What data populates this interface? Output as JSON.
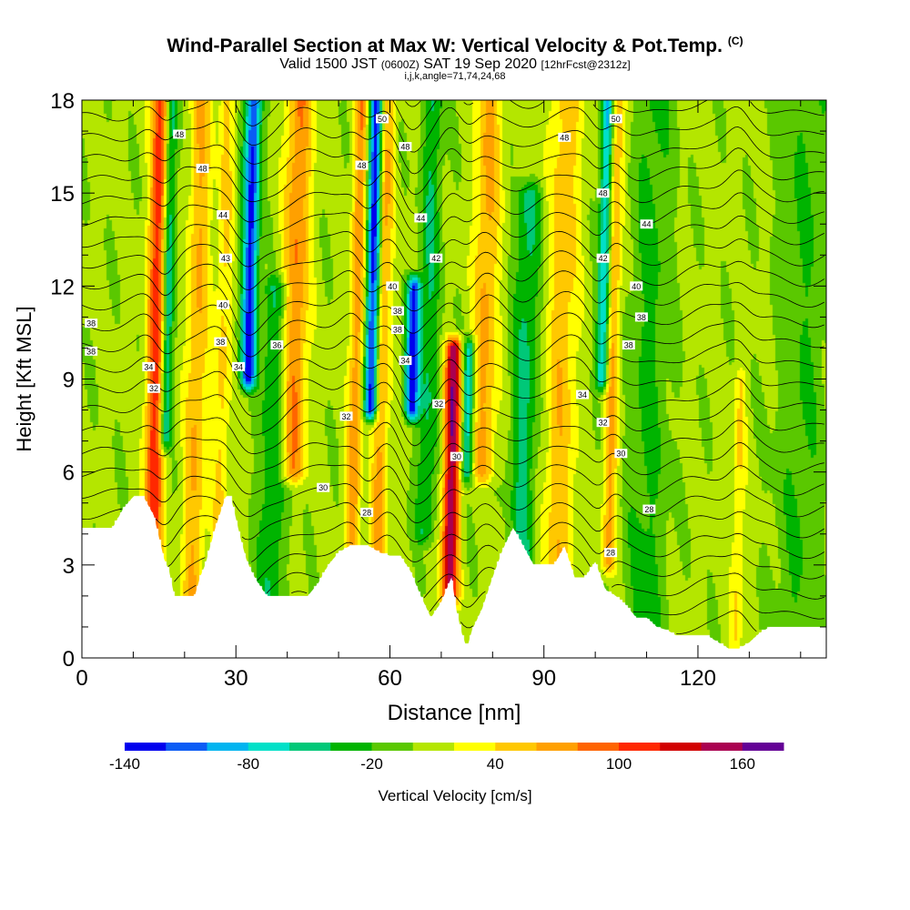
{
  "header": {
    "title": "Wind-Parallel Section at Max W: Vertical Velocity & Pot.Temp.",
    "title_tag": "(C)",
    "valid_a": "Valid 1500 JST",
    "valid_b": "(0600Z)",
    "valid_c": "SAT 19 Sep 2020",
    "valid_d": "[12hrFcst@2312z]",
    "indices": "i,j,k,angle=71,74,24,68"
  },
  "chart_data": {
    "type": "heatmap",
    "xlabel": "Distance [nm]",
    "ylabel": "Height [Kft MSL]",
    "xlim": [
      0,
      145
    ],
    "ylim": [
      0,
      18
    ],
    "xticks": [
      0,
      30,
      60,
      90,
      120
    ],
    "yticks": [
      0,
      3,
      6,
      9,
      12,
      15,
      18
    ],
    "colorbar": {
      "label": "Vertical Velocity [cm/s]",
      "range": [
        -140,
        180
      ],
      "step": 20,
      "ticks": [
        -140,
        -80,
        -20,
        40,
        100,
        160
      ],
      "colors": [
        "#0000ee",
        "#0a5cf5",
        "#00b4f0",
        "#00e0c8",
        "#00c878",
        "#00b400",
        "#5ac800",
        "#b4e600",
        "#ffff00",
        "#ffc800",
        "#ffa000",
        "#ff6400",
        "#ff2800",
        "#d20000",
        "#aa0050",
        "#640096"
      ]
    },
    "fields": {
      "background_w": 5,
      "updrafts": [
        {
          "x": 14,
          "y0": 0.5,
          "y1": 18,
          "amp": 110,
          "w": 1.8
        },
        {
          "x": 22,
          "y0": 0.5,
          "y1": 18,
          "amp": 55,
          "w": 2.2
        },
        {
          "x": 27,
          "y0": 3,
          "y1": 18,
          "amp": 40,
          "w": 1.5
        },
        {
          "x": 41,
          "y0": 6,
          "y1": 18,
          "amp": 75,
          "w": 2.5
        },
        {
          "x": 53,
          "y0": 3,
          "y1": 18,
          "amp": 70,
          "w": 1.4
        },
        {
          "x": 58,
          "y0": 3,
          "y1": 18,
          "amp": 60,
          "w": 1.6
        },
        {
          "x": 72,
          "y0": 2,
          "y1": 10,
          "amp": 150,
          "w": 1.6
        },
        {
          "x": 78,
          "y0": 6,
          "y1": 18,
          "amp": 60,
          "w": 2.5
        },
        {
          "x": 93,
          "y0": 3,
          "y1": 18,
          "amp": 50,
          "w": 3
        },
        {
          "x": 103,
          "y0": 3,
          "y1": 18,
          "amp": 60,
          "w": 1.4
        },
        {
          "x": 128,
          "y0": 0,
          "y1": 9,
          "amp": 35,
          "w": 1.2
        }
      ],
      "downdrafts": [
        {
          "x": 16,
          "y0": 7,
          "y1": 18,
          "amp": -75,
          "w": 1.2
        },
        {
          "x": 32,
          "y0": 9,
          "y1": 18,
          "amp": -130,
          "w": 1.5
        },
        {
          "x": 37,
          "y0": 2,
          "y1": 12,
          "amp": -45,
          "w": 2.5
        },
        {
          "x": 56,
          "y0": 8,
          "y1": 18,
          "amp": -140,
          "w": 1.3
        },
        {
          "x": 64,
          "y0": 8,
          "y1": 12,
          "amp": -130,
          "w": 1.3
        },
        {
          "x": 67,
          "y0": 4,
          "y1": 18,
          "amp": -45,
          "w": 2
        },
        {
          "x": 75,
          "y0": 6,
          "y1": 10,
          "amp": -85,
          "w": 1.2
        },
        {
          "x": 86,
          "y0": 3,
          "y1": 15,
          "amp": -50,
          "w": 2.5
        },
        {
          "x": 101,
          "y0": 9,
          "y1": 18,
          "amp": -90,
          "w": 1.2
        },
        {
          "x": 110,
          "y0": 0,
          "y1": 18,
          "amp": -30,
          "w": 4
        },
        {
          "x": 140,
          "y0": 0,
          "y1": 18,
          "amp": -25,
          "w": 5
        }
      ],
      "theta_base_levels": [
        28,
        30,
        32,
        34,
        36,
        38,
        40,
        42,
        44,
        46,
        48,
        50
      ]
    },
    "terrain": {
      "x": [
        0,
        6,
        8,
        10,
        12,
        14,
        16,
        17,
        18,
        20,
        22,
        23,
        24,
        26,
        28,
        29,
        30,
        31,
        32,
        33,
        34,
        36,
        38,
        40,
        42,
        44,
        46,
        48,
        50,
        52,
        54,
        56,
        58,
        60,
        62,
        64,
        66,
        68,
        70,
        71,
        72,
        73,
        74,
        75,
        76,
        78,
        80,
        82,
        84,
        86,
        88,
        90,
        92,
        94,
        96,
        98,
        100,
        102,
        104,
        106,
        108,
        110,
        112,
        114,
        116,
        118,
        120,
        122,
        124,
        126,
        128,
        130,
        132,
        134,
        136,
        138,
        140,
        142,
        145
      ],
      "y": [
        4.2,
        4.2,
        4.8,
        5.2,
        5.2,
        4.6,
        3.2,
        2.8,
        2.0,
        2.0,
        2.0,
        2.6,
        3.0,
        4.2,
        5.2,
        5.2,
        4.5,
        3.8,
        3.2,
        2.8,
        2.5,
        2.0,
        2.0,
        2.0,
        2.0,
        2.0,
        2.4,
        3.0,
        3.4,
        3.6,
        3.6,
        3.6,
        3.4,
        3.3,
        3.3,
        2.8,
        2.0,
        1.3,
        1.8,
        2.2,
        2.6,
        1.5,
        0.8,
        0.3,
        0.9,
        1.6,
        2.6,
        3.5,
        4.2,
        3.6,
        3.0,
        3.0,
        3.0,
        3.6,
        2.6,
        2.6,
        3.1,
        2.2,
        2.0,
        1.7,
        1.3,
        1.3,
        1.0,
        0.9,
        0.7,
        0.7,
        0.7,
        0.7,
        0.5,
        0.3,
        0.3,
        0.5,
        0.8,
        1.0,
        1.0,
        1.0,
        1.0,
        1.0,
        1.0
      ]
    },
    "contour_labels": [
      {
        "text": "50",
        "x": 58.5,
        "y": 17.4
      },
      {
        "text": "50",
        "x": 104,
        "y": 17.4
      },
      {
        "text": "48",
        "x": 19,
        "y": 16.9
      },
      {
        "text": "48",
        "x": 63,
        "y": 16.5
      },
      {
        "text": "48",
        "x": 94,
        "y": 16.8
      },
      {
        "text": "48",
        "x": 23.5,
        "y": 15.8
      },
      {
        "text": "48",
        "x": 54.5,
        "y": 15.9
      },
      {
        "text": "48",
        "x": 101.5,
        "y": 15.0
      },
      {
        "text": "44",
        "x": 27.5,
        "y": 14.3
      },
      {
        "text": "44",
        "x": 66,
        "y": 14.2
      },
      {
        "text": "44",
        "x": 110,
        "y": 14.0
      },
      {
        "text": "43",
        "x": 28,
        "y": 12.9
      },
      {
        "text": "42",
        "x": 69,
        "y": 12.9
      },
      {
        "text": "42",
        "x": 101.5,
        "y": 12.9
      },
      {
        "text": "40",
        "x": 60.5,
        "y": 12.0
      },
      {
        "text": "40",
        "x": 108,
        "y": 12.0
      },
      {
        "text": "40",
        "x": 27.5,
        "y": 11.4
      },
      {
        "text": "38",
        "x": 61.5,
        "y": 11.2
      },
      {
        "text": "38",
        "x": 1.8,
        "y": 10.8
      },
      {
        "text": "38",
        "x": 109,
        "y": 11.0
      },
      {
        "text": "38",
        "x": 61.5,
        "y": 10.6
      },
      {
        "text": "38",
        "x": 27,
        "y": 10.2
      },
      {
        "text": "36",
        "x": 38,
        "y": 10.1
      },
      {
        "text": "38",
        "x": 106.5,
        "y": 10.1
      },
      {
        "text": "38",
        "x": 1.8,
        "y": 9.9
      },
      {
        "text": "34",
        "x": 63,
        "y": 9.6
      },
      {
        "text": "34",
        "x": 13,
        "y": 9.4
      },
      {
        "text": "34",
        "x": 30.5,
        "y": 9.4
      },
      {
        "text": "32",
        "x": 14,
        "y": 8.7
      },
      {
        "text": "34",
        "x": 97.5,
        "y": 8.5
      },
      {
        "text": "32",
        "x": 69.5,
        "y": 8.2
      },
      {
        "text": "32",
        "x": 51.5,
        "y": 7.8
      },
      {
        "text": "32",
        "x": 101.5,
        "y": 7.6
      },
      {
        "text": "30",
        "x": 73,
        "y": 6.5
      },
      {
        "text": "30",
        "x": 105,
        "y": 6.6
      },
      {
        "text": "30",
        "x": 47,
        "y": 5.5
      },
      {
        "text": "28",
        "x": 110.5,
        "y": 4.8
      },
      {
        "text": "28",
        "x": 55.5,
        "y": 4.7
      },
      {
        "text": "28",
        "x": 103,
        "y": 3.4
      }
    ]
  }
}
